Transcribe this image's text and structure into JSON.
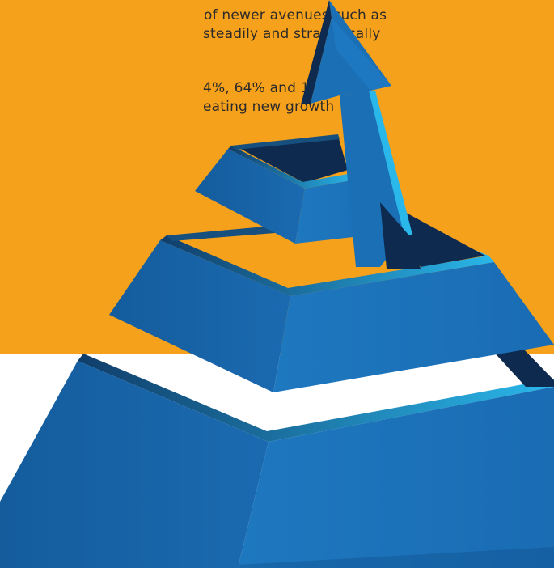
{
  "colors": {
    "background_orange": "#f5a11c",
    "white": "#ffffff",
    "pyramid_blue": "#1a6fb5",
    "pyramid_side": "#1561a3",
    "pyramid_dark": "#0f2a4f",
    "edge_cyan": "#25b4e6",
    "text": "#2c2a2a"
  },
  "text_lines": [
    "of newer avenues such as",
    "steadily and strategically",
    "4%, 64% and 159%",
    "eating new growth"
  ],
  "graphic": {
    "subject": "pyramid-with-arrow",
    "tiers": 3
  }
}
